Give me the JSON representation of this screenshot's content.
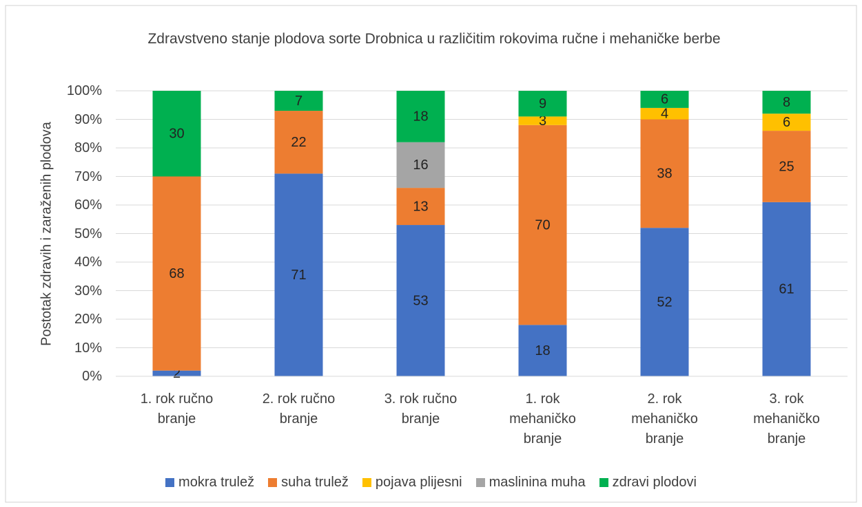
{
  "chart_data": {
    "type": "stacked_bar",
    "title": "Zdravstveno stanje plodova sorte Drobnica u različitim rokovima ručne i mehaničke berbe",
    "ylabel": "Postotak zdravih i zaraženih plodova",
    "categories": [
      "1. rok ručno branje",
      "2. rok ručno branje",
      "3. rok ručno branje",
      "1. rok mehaničko branje",
      "2. rok mehaničko branje",
      "3. rok mehaničko branje"
    ],
    "series": [
      {
        "name": "mokra trulež",
        "color": "#4472c4",
        "values": [
          2,
          71,
          53,
          18,
          52,
          61
        ]
      },
      {
        "name": "suha trulež",
        "color": "#ed7d31",
        "values": [
          68,
          22,
          13,
          70,
          38,
          25
        ]
      },
      {
        "name": "pojava plijesni",
        "color": "#ffc000",
        "values": [
          null,
          null,
          null,
          3,
          4,
          6
        ]
      },
      {
        "name": "maslinina muha",
        "color": "#a5a5a5",
        "values": [
          null,
          null,
          16,
          null,
          null,
          null
        ]
      },
      {
        "name": "zdravi plodovi",
        "color": "#00b050",
        "values": [
          30,
          7,
          18,
          9,
          6,
          8
        ]
      }
    ],
    "ylim": [
      0,
      100
    ],
    "yticks": [
      {
        "value": 0,
        "label": "0%"
      },
      {
        "value": 10,
        "label": "10%"
      },
      {
        "value": 20,
        "label": "20%"
      },
      {
        "value": 30,
        "label": "30%"
      },
      {
        "value": 40,
        "label": "40%"
      },
      {
        "value": 50,
        "label": "50%"
      },
      {
        "value": 60,
        "label": "60%"
      },
      {
        "value": 70,
        "label": "70%"
      },
      {
        "value": 80,
        "label": "80%"
      },
      {
        "value": 90,
        "label": "90%"
      },
      {
        "value": 100,
        "label": "100%"
      }
    ],
    "grid": true,
    "legend": "bottom"
  }
}
